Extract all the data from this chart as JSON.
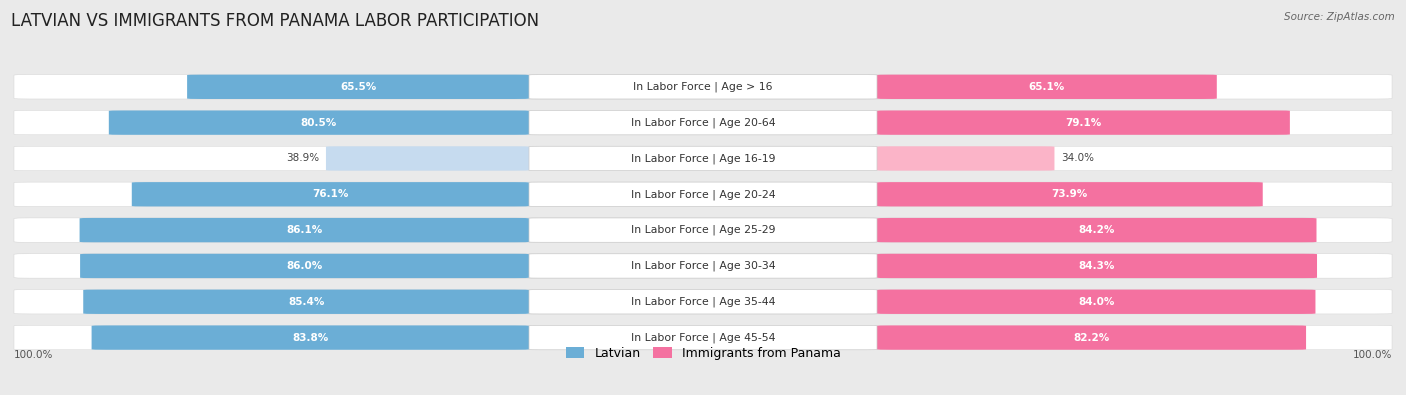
{
  "title": "LATVIAN VS IMMIGRANTS FROM PANAMA LABOR PARTICIPATION",
  "source": "Source: ZipAtlas.com",
  "categories": [
    "In Labor Force | Age > 16",
    "In Labor Force | Age 20-64",
    "In Labor Force | Age 16-19",
    "In Labor Force | Age 20-24",
    "In Labor Force | Age 25-29",
    "In Labor Force | Age 30-34",
    "In Labor Force | Age 35-44",
    "In Labor Force | Age 45-54"
  ],
  "latvian_values": [
    65.5,
    80.5,
    38.9,
    76.1,
    86.1,
    86.0,
    85.4,
    83.8
  ],
  "panama_values": [
    65.1,
    79.1,
    34.0,
    73.9,
    84.2,
    84.3,
    84.0,
    82.2
  ],
  "latvian_color": "#6baed6",
  "latvian_color_light": "#c6dbef",
  "panama_color": "#f471a0",
  "panama_color_light": "#fbb4c8",
  "bg_color": "#eaeaea",
  "row_bg_color": "#f8f8f8",
  "title_fontsize": 12,
  "label_fontsize": 7.8,
  "value_fontsize": 7.5,
  "legend_fontsize": 9,
  "axis_label_fontsize": 7.5,
  "max_value": 100.0
}
